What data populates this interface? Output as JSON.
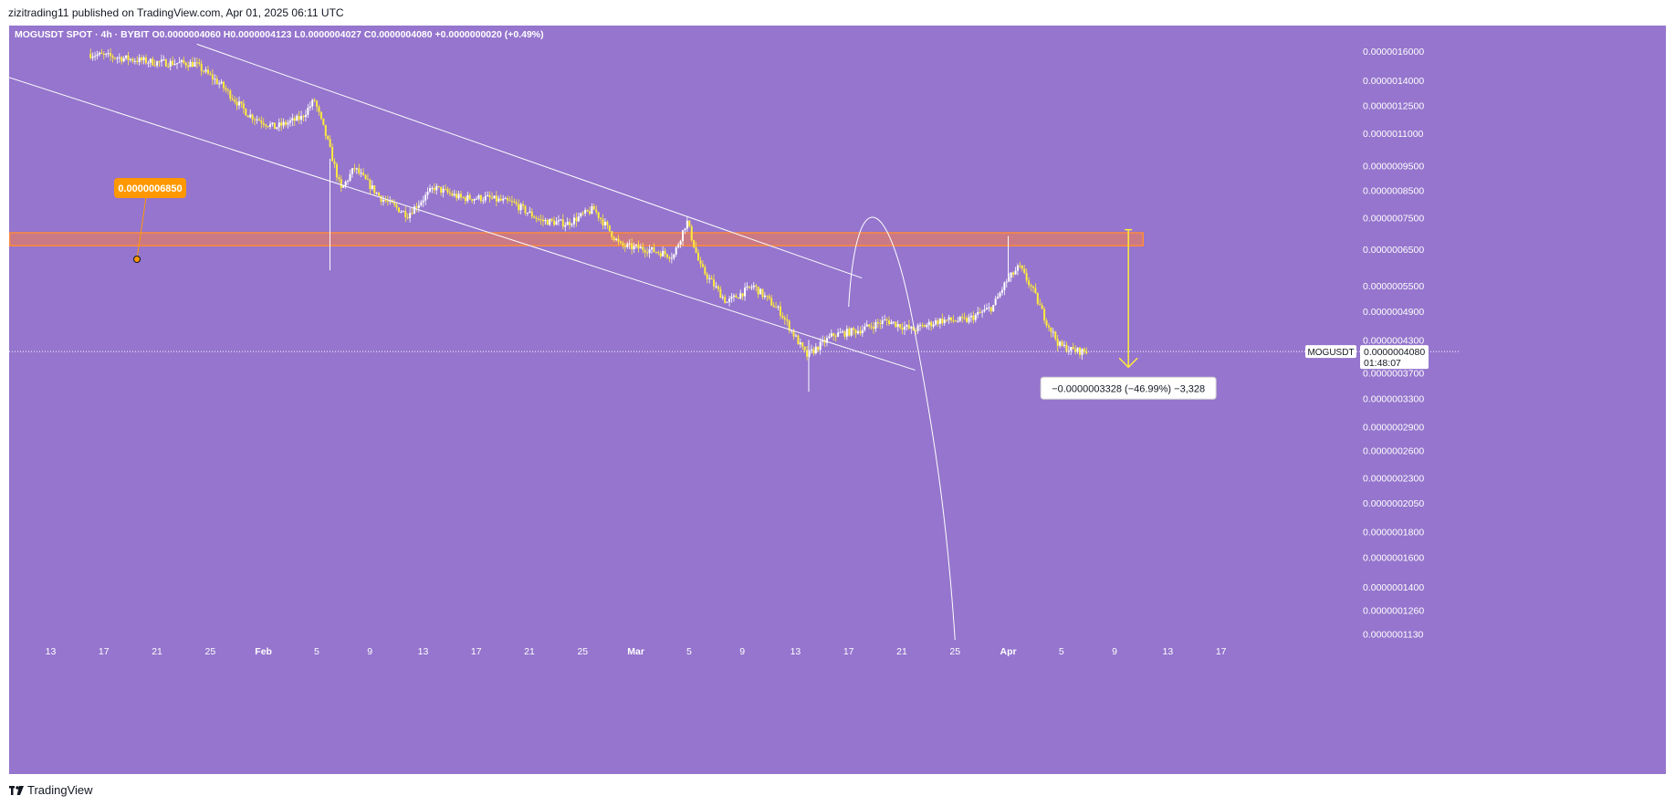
{
  "header": {
    "publish_line": "zizitrading11 published on TradingView.com, Apr 01, 2025 06:11 UTC"
  },
  "footer": {
    "brand": "TradingView",
    "logo_icon": "tradingview-logo-icon"
  },
  "colors": {
    "background": "#9575cd",
    "candle_up": "#ffffff",
    "candle_down": "#ffeb3b",
    "trendline": "#ffffff",
    "zone_fill": "#f57c4a",
    "zone_border": "#ff8a3d",
    "callout": "#ff9800",
    "arrow": "#ffeb3b",
    "axis_text": "#ffffff"
  },
  "chart_data": {
    "type": "candlestick",
    "legend": {
      "symbol": "MOGUSDT SPOT · 4h · BYBIT",
      "o": "O0.0000004060",
      "h": "H0.0000004123",
      "l": "L0.0000004027",
      "c": "C0.0000004080",
      "change": "+0.0000000020 (+0.49%)"
    },
    "y_axis": {
      "scale": "log",
      "ticks": [
        "0.0000016000",
        "0.0000014000",
        "0.0000012500",
        "0.0000011000",
        "0.0000009500",
        "0.0000008500",
        "0.0000007500",
        "0.0000006500",
        "0.0000005500",
        "0.0000004900",
        "0.0000004300",
        "0.0000003700",
        "0.0000003300",
        "0.0000002900",
        "0.0000002600",
        "0.0000002300",
        "0.0000002050",
        "0.0000001800",
        "0.0000001600",
        "0.0000001400",
        "0.0000001260",
        "0.0000001130"
      ]
    },
    "x_axis": {
      "ticks": [
        "13",
        "17",
        "21",
        "25",
        "Feb",
        "5",
        "9",
        "13",
        "17",
        "21",
        "25",
        "Mar",
        "5",
        "9",
        "13",
        "17",
        "21",
        "25",
        "Apr",
        "5",
        "9",
        "13",
        "17"
      ]
    },
    "price_path": [
      [
        "2025-01-16",
        1.58e-06
      ],
      [
        "2025-01-21",
        1.52e-06
      ],
      [
        "2025-01-24",
        1.51e-06
      ],
      [
        "2025-01-26",
        1.37e-06
      ],
      [
        "2025-01-28",
        1.2e-06
      ],
      [
        "2025-01-30",
        1.13e-06
      ],
      [
        "2025-02-01",
        1.18e-06
      ],
      [
        "2025-02-02",
        1.28e-06
      ],
      [
        "2025-02-03",
        1.06e-06
      ],
      [
        "2025-02-04",
        8.5e-07
      ],
      [
        "2025-02-05",
        9.4e-07
      ],
      [
        "2025-02-07",
        8.2e-07
      ],
      [
        "2025-02-09",
        7.6e-07
      ],
      [
        "2025-02-11",
        8.6e-07
      ],
      [
        "2025-02-13",
        8.2e-07
      ],
      [
        "2025-02-15",
        8.2e-07
      ],
      [
        "2025-02-17",
        8e-07
      ],
      [
        "2025-02-19",
        7.4e-07
      ],
      [
        "2025-02-21",
        7.3e-07
      ],
      [
        "2025-02-23",
        7.8e-07
      ],
      [
        "2025-02-25",
        6.6e-07
      ],
      [
        "2025-02-27",
        6.5e-07
      ],
      [
        "2025-03-01",
        6.3e-07
      ],
      [
        "2025-03-02",
        7.4e-07
      ],
      [
        "2025-03-03",
        6e-07
      ],
      [
        "2025-03-05",
        5.1e-07
      ],
      [
        "2025-03-07",
        5.5e-07
      ],
      [
        "2025-03-09",
        4.9e-07
      ],
      [
        "2025-03-11",
        4e-07
      ],
      [
        "2025-03-13",
        4.4e-07
      ],
      [
        "2025-03-15",
        4.5e-07
      ],
      [
        "2025-03-17",
        4.7e-07
      ],
      [
        "2025-03-19",
        4.5e-07
      ],
      [
        "2025-03-21",
        4.7e-07
      ],
      [
        "2025-03-23",
        4.7e-07
      ],
      [
        "2025-03-25",
        5e-07
      ],
      [
        "2025-03-26",
        5.6e-07
      ],
      [
        "2025-03-27",
        6e-07
      ],
      [
        "2025-03-28",
        5.4e-07
      ],
      [
        "2025-03-29",
        4.7e-07
      ],
      [
        "2025-03-30",
        4.2e-07
      ],
      [
        "2025-03-31",
        4.1e-07
      ],
      [
        "2025-04-01",
        4.08e-07
      ]
    ],
    "resistance_zone": {
      "low": 6.6e-07,
      "high": 7e-07,
      "start": "2025-01-10",
      "end": "2025-04-05"
    },
    "zone_label": "0.0000006850",
    "trendlines": [
      {
        "from": [
          "2025-01-10",
          1.32e-06
        ],
        "to": [
          "2025-03-19",
          3.75e-07
        ]
      },
      {
        "from": [
          "2025-01-24",
          1.65e-06
        ],
        "to": [
          "2025-03-15",
          5.7e-07
        ]
      }
    ],
    "parabola": {
      "start": [
        "2025-03-14",
        5e-07
      ],
      "peak": [
        "2025-03-15",
        7.5e-07
      ],
      "end": [
        "2025-03-22",
        1.1e-07
      ]
    },
    "measure_arrow": {
      "from": [
        "2025-04-04",
        7.1e-07
      ],
      "to": [
        "2025-04-04",
        3.8e-07
      ]
    },
    "measure_label": "−0.0000003328 (−46.99%) −3,328",
    "last_price": {
      "symbol": "MOGUSDT",
      "value": "0.0000004080",
      "countdown": "01:48:07",
      "price": 4.08e-07
    }
  }
}
